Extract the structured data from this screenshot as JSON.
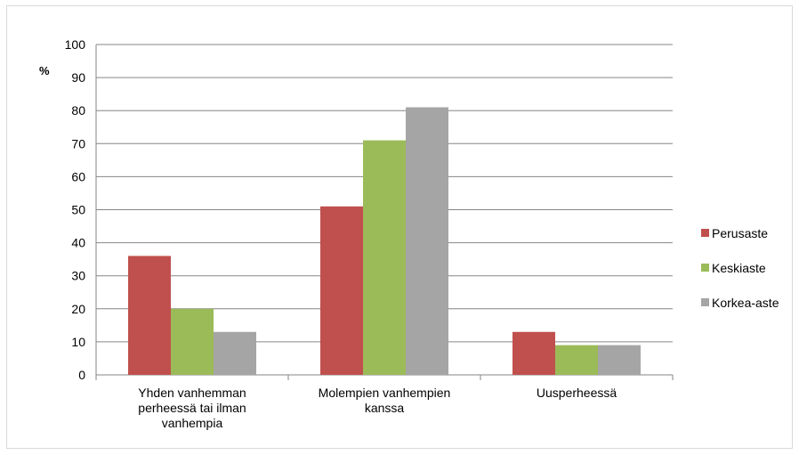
{
  "chart_data": {
    "type": "bar",
    "ylabel": "%",
    "ylim": [
      0,
      100
    ],
    "yticks": [
      0,
      10,
      20,
      30,
      40,
      50,
      60,
      70,
      80,
      90,
      100
    ],
    "grid": true,
    "legend_position": "right",
    "categories": [
      [
        "Yhden vanhemman",
        "perheessä tai ilman",
        "vanhempia"
      ],
      [
        "Molempien vanhempien",
        "kanssa"
      ],
      [
        "Uusperheessä"
      ]
    ],
    "series": [
      {
        "name": "Perusaste",
        "color": "#c0504d",
        "values": [
          36,
          51,
          13
        ]
      },
      {
        "name": "Keskiaste",
        "color": "#9bbb59",
        "values": [
          20,
          71,
          9
        ]
      },
      {
        "name": "Korkea-aste",
        "color": "#a5a5a5",
        "values": [
          13,
          81,
          9
        ]
      }
    ]
  }
}
